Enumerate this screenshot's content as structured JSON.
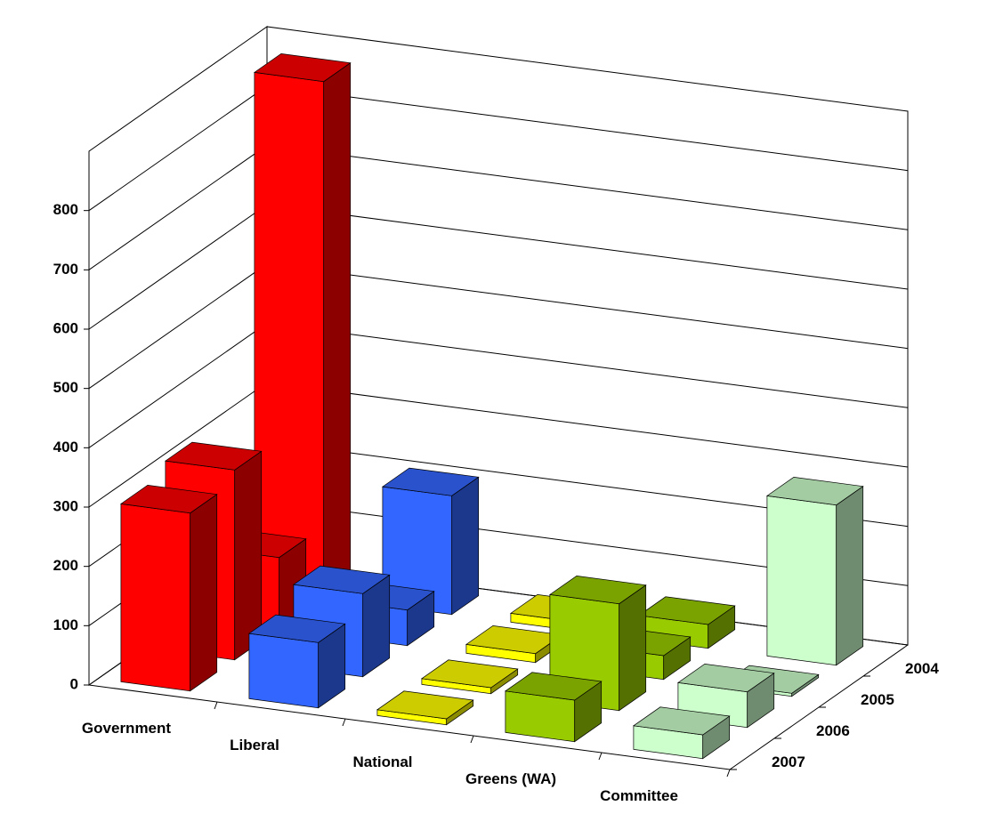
{
  "chart_data": {
    "type": "bar3d",
    "categories": [
      "Government",
      "Liberal",
      "National",
      "Greens (WA)",
      "Committee"
    ],
    "series": [
      {
        "name": "2004",
        "values": [
          870,
          200,
          15,
          40,
          270
        ]
      },
      {
        "name": "2005",
        "values": [
          120,
          60,
          15,
          40,
          5
        ]
      },
      {
        "name": "2006",
        "values": [
          320,
          140,
          10,
          180,
          60
        ]
      },
      {
        "name": "2007",
        "values": [
          300,
          110,
          10,
          70,
          40
        ]
      }
    ],
    "colors": [
      "#ff0000",
      "#3366ff",
      "#ffff00",
      "#99cc00",
      "#ccffcc"
    ],
    "ylim": [
      0,
      900
    ],
    "yticks": [
      0,
      100,
      200,
      300,
      400,
      500,
      600,
      700,
      800
    ],
    "grid": true
  }
}
